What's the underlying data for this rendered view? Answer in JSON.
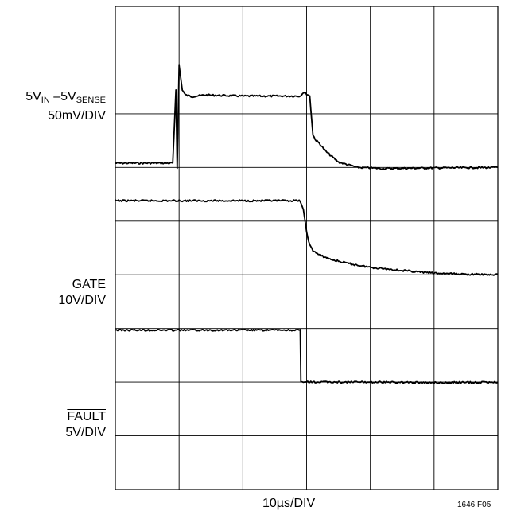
{
  "chart_data": {
    "type": "line",
    "title": "",
    "xlabel": "10µs/DIV",
    "figure_id": "1646 F05",
    "grid": true,
    "divisions": {
      "x": 6,
      "y": 9
    },
    "x_unit": "div",
    "channels": [
      {
        "name": "5VIN – 5VSENSE",
        "label_parts": {
          "pre": "5V",
          "sub1": "IN",
          "mid": " –5V",
          "sub2": "SENSE"
        },
        "scale": "50mV/DIV",
        "x": [
          0,
          0.9,
          0.92,
          0.95,
          0.97,
          1.0,
          1.05,
          1.1,
          1.2,
          1.4,
          2.0,
          2.9,
          2.95,
          3.0,
          3.05,
          3.1,
          3.15,
          3.2,
          3.3,
          3.5,
          3.8,
          4.2,
          5.0,
          6.0
        ],
        "y": [
          0.08,
          0.08,
          0.6,
          1.45,
          0.0,
          1.9,
          1.45,
          1.35,
          1.32,
          1.35,
          1.33,
          1.33,
          1.4,
          1.37,
          1.33,
          0.6,
          0.5,
          0.45,
          0.3,
          0.1,
          0.0,
          -0.02,
          -0.01,
          0.0
        ],
        "baseline_div": 3.0
      },
      {
        "name": "GATE",
        "scale": "10V/DIV",
        "x": [
          0,
          1.0,
          2.0,
          2.9,
          2.95,
          3.0,
          3.05,
          3.1,
          3.2,
          3.4,
          3.7,
          4.0,
          4.5,
          5.0,
          5.5,
          6.0
        ],
        "y": [
          1.38,
          1.38,
          1.38,
          1.38,
          1.2,
          0.8,
          0.55,
          0.45,
          0.37,
          0.28,
          0.2,
          0.14,
          0.08,
          0.03,
          0.01,
          0.0
        ],
        "baseline_div": 5.0
      },
      {
        "name": "FAULT",
        "overline": true,
        "scale": "5V/DIV",
        "x": [
          0,
          1.0,
          2.0,
          2.9,
          2.91,
          3.0,
          4.0,
          5.0,
          6.0
        ],
        "y": [
          0.97,
          0.97,
          0.97,
          0.97,
          0.0,
          0.0,
          0.0,
          -0.01,
          0.0
        ],
        "baseline_div": 7.0
      }
    ]
  }
}
